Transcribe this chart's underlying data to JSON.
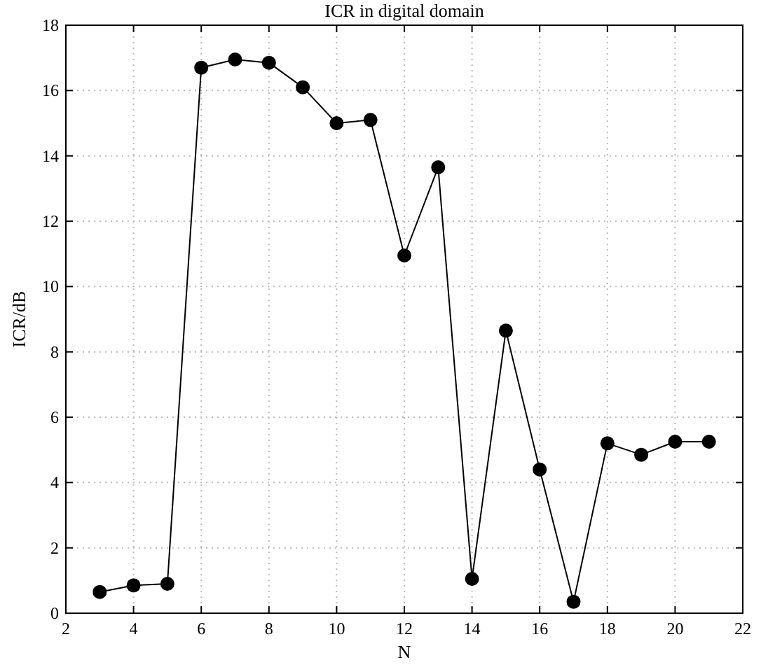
{
  "chart_data": {
    "type": "line",
    "title": "ICR in digital domain",
    "xlabel": "N",
    "ylabel": "ICR/dB",
    "x": [
      3,
      4,
      5,
      6,
      7,
      8,
      9,
      10,
      11,
      12,
      13,
      14,
      15,
      16,
      17,
      18,
      19,
      20,
      21
    ],
    "series": [
      {
        "color": "#000000",
        "values": [
          0.65,
          0.85,
          0.9,
          16.7,
          16.95,
          16.85,
          16.1,
          15.0,
          15.1,
          10.95,
          13.65,
          1.05,
          8.65,
          4.4,
          0.35,
          5.2,
          4.85,
          5.25,
          5.25
        ]
      }
    ],
    "xlim": [
      2,
      22
    ],
    "xticks": [
      2,
      4,
      6,
      8,
      10,
      12,
      14,
      16,
      18,
      20,
      22
    ],
    "ylim": [
      0,
      18
    ],
    "yticks": [
      0,
      2,
      4,
      6,
      8,
      10,
      12,
      14,
      16,
      18
    ],
    "grid": true,
    "marker": "circle",
    "line_style": "solid"
  }
}
